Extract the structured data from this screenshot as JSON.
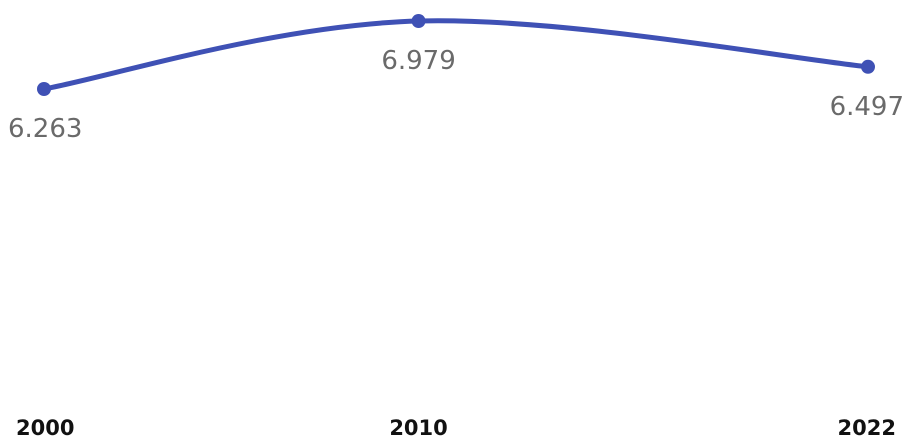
{
  "chart_data": {
    "type": "line",
    "categories": [
      "2000",
      "2010",
      "2022"
    ],
    "x": [
      2000,
      2010,
      2022
    ],
    "series": [
      {
        "values": [
          6.263,
          6.979,
          6.497
        ],
        "color": "#3f51b5"
      }
    ],
    "data_labels": [
      "6.263",
      "6.979",
      "6.497"
    ],
    "title": "",
    "xlabel": "",
    "ylabel": "",
    "grid": false,
    "legend": "none",
    "smooth": true
  }
}
